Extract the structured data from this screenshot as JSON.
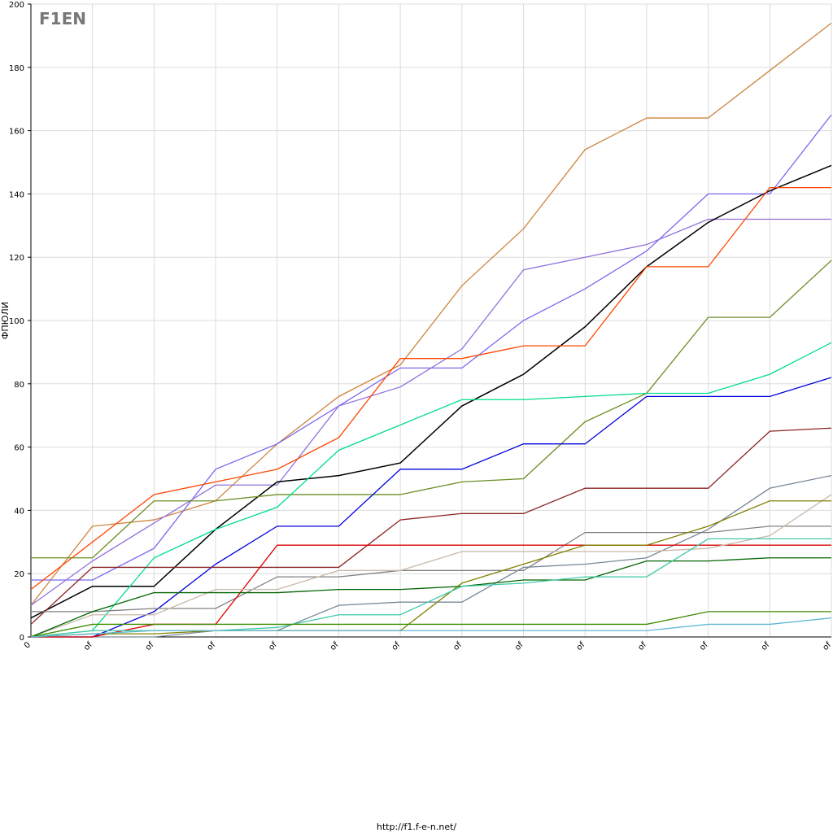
{
  "logo": "F1EN",
  "footer": "http://f1.f-e-n.net/",
  "chart_data": {
    "type": "line",
    "y_label": "ФПЮЛИ",
    "categories": [
      "0",
      "of",
      "of",
      "of",
      "of",
      "of",
      "of",
      "of",
      "of",
      "of",
      "of",
      "of",
      "of",
      "of"
    ],
    "ylim": [
      0,
      200
    ],
    "yticks": [
      0,
      20,
      40,
      60,
      80,
      100,
      120,
      140,
      160,
      180,
      200
    ],
    "grid": true,
    "series": [
      {
        "color": "#cd853f",
        "values": [
          10,
          35,
          37,
          43,
          61,
          76,
          86,
          111,
          129,
          154,
          164,
          164,
          179,
          194
        ]
      },
      {
        "color": "#7b68ee",
        "values": [
          18,
          18,
          28,
          53,
          61,
          73,
          85,
          85,
          100,
          110,
          122,
          140,
          140,
          165
        ]
      },
      {
        "color": "#9370db",
        "values": [
          10,
          24,
          36,
          48,
          48,
          73,
          79,
          91,
          116,
          120,
          124,
          132,
          132,
          132
        ]
      },
      {
        "color": "#000000",
        "values": [
          6,
          16,
          16,
          34,
          49,
          51,
          55,
          73,
          83,
          98,
          117,
          131,
          141,
          149
        ]
      },
      {
        "color": "#ff4500",
        "values": [
          15,
          30,
          45,
          49,
          53,
          63,
          88,
          88,
          92,
          92,
          117,
          117,
          142,
          142
        ]
      },
      {
        "color": "#6b8e23",
        "values": [
          25,
          25,
          43,
          43,
          45,
          45,
          45,
          49,
          50,
          68,
          77,
          101,
          101,
          119
        ]
      },
      {
        "color": "#00dd88",
        "values": [
          0,
          2,
          25,
          34,
          41,
          59,
          67,
          75,
          75,
          76,
          77,
          77,
          83,
          93
        ]
      },
      {
        "color": "#0000dd",
        "values": [
          0,
          0,
          8,
          23,
          35,
          35,
          53,
          53,
          61,
          61,
          76,
          76,
          76,
          82
        ]
      },
      {
        "color": "#8b2323",
        "values": [
          4,
          22,
          22,
          22,
          22,
          22,
          37,
          39,
          39,
          47,
          47,
          47,
          65,
          66
        ]
      },
      {
        "color": "#808080",
        "values": [
          8,
          8,
          9,
          9,
          19,
          19,
          21,
          21,
          21,
          33,
          33,
          33,
          35,
          35
        ]
      },
      {
        "color": "#778899",
        "values": [
          0,
          0,
          0,
          2,
          2,
          10,
          11,
          11,
          22,
          23,
          25,
          34,
          47,
          51
        ]
      },
      {
        "color": "#dd0000",
        "values": [
          0,
          0,
          4,
          4,
          29,
          29,
          29,
          29,
          29,
          29,
          29,
          29,
          29,
          29
        ]
      },
      {
        "color": "#c8b8a8",
        "values": [
          0,
          7,
          7,
          15,
          15,
          21,
          21,
          27,
          27,
          27,
          27,
          28,
          32,
          45
        ]
      },
      {
        "color": "#808000",
        "values": [
          0,
          1,
          1,
          2,
          2,
          2,
          2,
          17,
          23,
          29,
          29,
          35,
          43,
          43
        ]
      },
      {
        "color": "#006400",
        "values": [
          0,
          8,
          14,
          14,
          14,
          15,
          15,
          16,
          18,
          18,
          24,
          24,
          25,
          25
        ]
      },
      {
        "color": "#40c8a8",
        "values": [
          0,
          2,
          2,
          2,
          3,
          7,
          7,
          16,
          17,
          19,
          19,
          31,
          31,
          31
        ]
      },
      {
        "color": "#3c8c00",
        "values": [
          0,
          4,
          4,
          4,
          4,
          4,
          4,
          4,
          4,
          4,
          4,
          8,
          8,
          8
        ]
      },
      {
        "color": "#5fb8d0",
        "values": [
          0,
          1,
          2,
          2,
          2,
          2,
          2,
          2,
          2,
          2,
          2,
          4,
          4,
          6
        ]
      }
    ]
  }
}
